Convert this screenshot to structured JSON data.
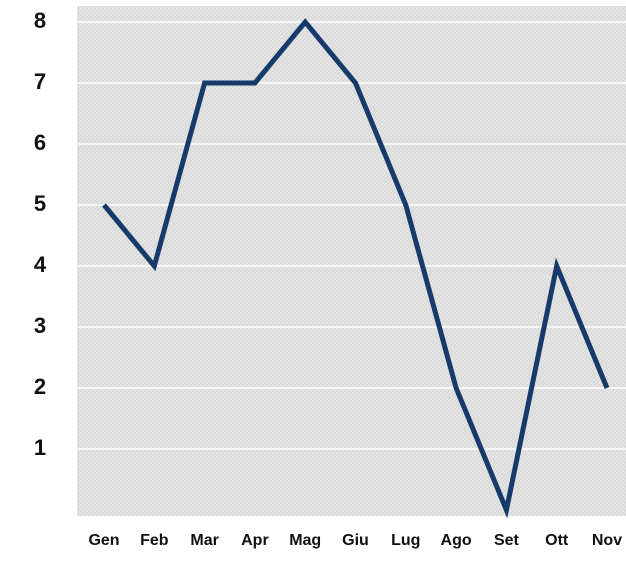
{
  "chart_data": {
    "type": "line",
    "categories": [
      "Gen",
      "Feb",
      "Mar",
      "Apr",
      "Mag",
      "Giu",
      "Lug",
      "Ago",
      "Set",
      "Ott",
      "Nov"
    ],
    "values": [
      5,
      4,
      7,
      7,
      8,
      7,
      5,
      2,
      0,
      4,
      2
    ],
    "color": "#163a6a",
    "ylim": [
      0,
      8
    ],
    "yticks": [
      1,
      2,
      3,
      4,
      5,
      6,
      7,
      8
    ],
    "grid": true
  }
}
